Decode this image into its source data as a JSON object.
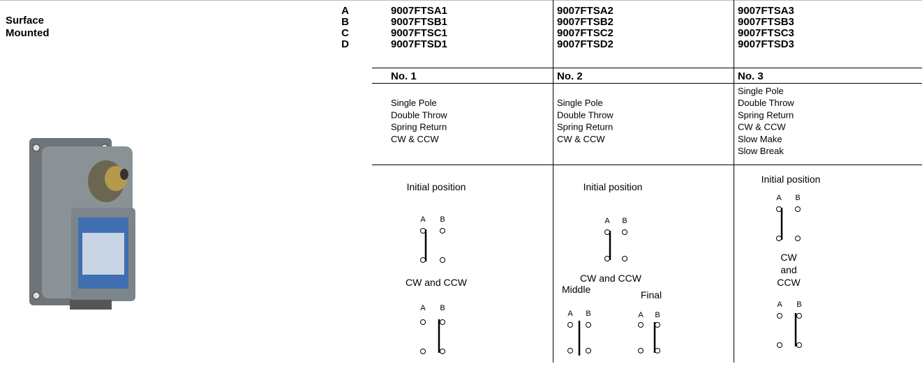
{
  "label": [
    "Surface",
    "Mounted"
  ],
  "row_letters": [
    "A",
    "B",
    "C",
    "D"
  ],
  "columns": [
    {
      "parts": [
        "9007FTSA1",
        "9007FTSB1",
        "9007FTSC1",
        "9007FTSD1"
      ],
      "name": "No. 1",
      "description": [
        "Single Pole",
        "Double Throw",
        "Spring Return",
        "CW & CCW"
      ],
      "diagram": {
        "initial": "Initial position",
        "contact_a": "A",
        "contact_b": "B",
        "action": "CW and CCW"
      }
    },
    {
      "parts": [
        "9007FTSA2",
        "9007FTSB2",
        "9007FTSC2",
        "9007FTSD2"
      ],
      "name": "No. 2",
      "description": [
        "Single Pole",
        "Double Throw",
        "Spring Return",
        "CW & CCW"
      ],
      "diagram": {
        "initial": "Initial position",
        "contact_a": "A",
        "contact_b": "B",
        "action": "CW and CCW",
        "middle": "Middle",
        "final": "Final"
      }
    },
    {
      "parts": [
        "9007FTSA3",
        "9007FTSB3",
        "9007FTSC3",
        "9007FTSD3"
      ],
      "name": "No. 3",
      "description": [
        "Single Pole",
        "Double Throw",
        "Spring Return",
        "CW & CCW",
        "Slow Make",
        "Slow Break"
      ],
      "diagram": {
        "initial": "Initial position",
        "contact_a": "A",
        "contact_b": "B",
        "action_lines": [
          "CW",
          "and",
          "CCW"
        ]
      }
    }
  ]
}
